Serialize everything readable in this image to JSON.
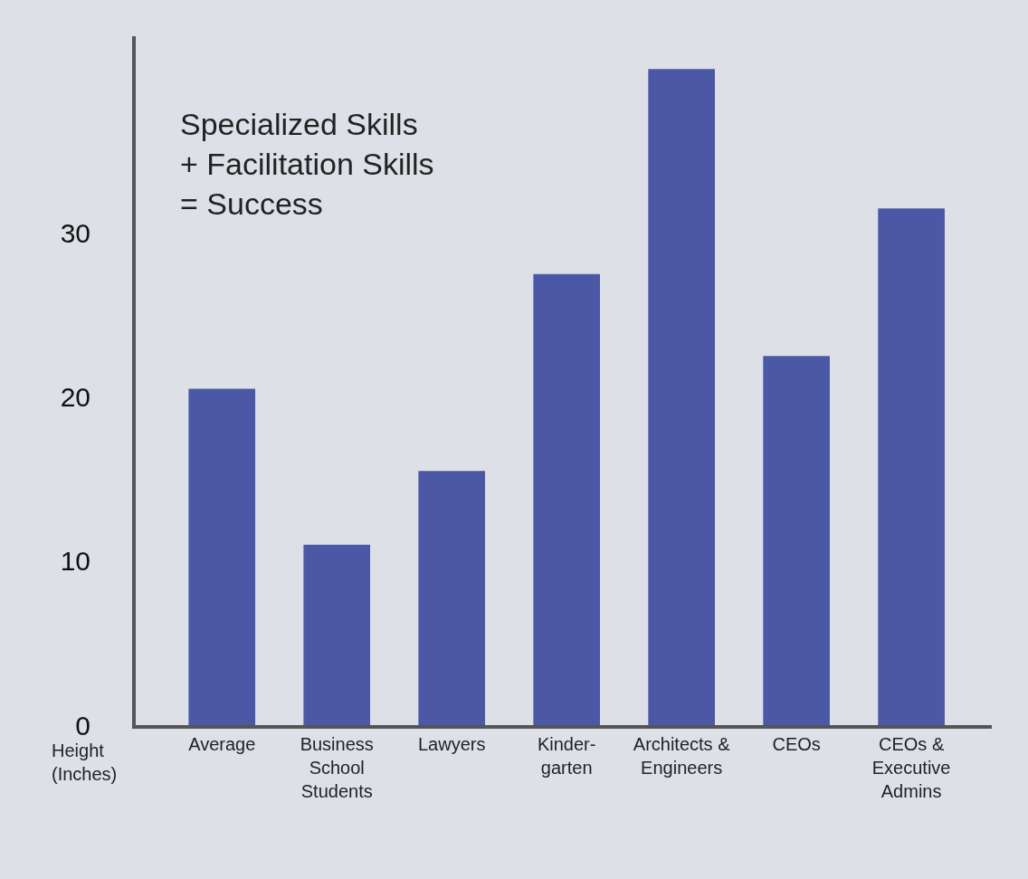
{
  "chart_data": {
    "type": "bar",
    "categories": [
      "Average",
      "Business\nSchool\nStudents",
      "Lawyers",
      "Kinder-\ngarten",
      "Architects &\nEngineers",
      "CEOs",
      "CEOs &\nExecutive\nAdmins"
    ],
    "values": [
      20.5,
      11,
      15.5,
      27.5,
      40,
      22.5,
      31.5
    ],
    "color": "#4b58a6",
    "ylabel": "Height\n(Inches)",
    "annotations": [
      "Specialized Skills\n+ Facilitation Skills\n= Success"
    ],
    "ylim": [
      0,
      42
    ],
    "yticks": [
      0,
      10,
      20,
      30
    ],
    "grid": false,
    "legend": false
  }
}
